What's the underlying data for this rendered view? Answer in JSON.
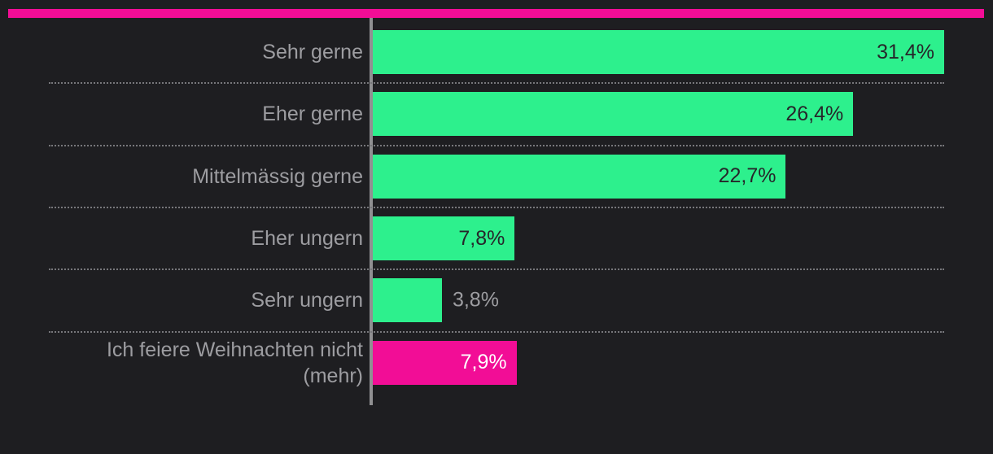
{
  "colors": {
    "background": "#1e1e21",
    "accent_pink": "#f20d96",
    "bar_green": "#2df08d",
    "axis_gray": "#909092",
    "separator_gray": "#77777b",
    "label_gray": "#9d9da1",
    "value_dark": "#26262a",
    "value_white": "#ffffff"
  },
  "chart_data": {
    "type": "bar",
    "orientation": "horizontal",
    "title": "",
    "xlabel": "",
    "ylabel": "",
    "xlim": [
      0,
      31.4
    ],
    "legend": "none",
    "grid": "dotted-row-separators",
    "categories": [
      "Sehr gerne",
      "Eher gerne",
      "Mittelmässig gerne",
      "Eher ungern",
      "Sehr ungern",
      "Ich feiere Weihnachten nicht (mehr)"
    ],
    "values": [
      31.4,
      26.4,
      22.7,
      7.8,
      3.8,
      7.9
    ],
    "value_labels": [
      "31,4%",
      "26,4%",
      "22,7%",
      "7,8%",
      "3,8%",
      "7,9%"
    ],
    "bar_colors": [
      "green",
      "green",
      "green",
      "green",
      "green",
      "pink"
    ],
    "value_label_placement": [
      "inside",
      "inside",
      "inside",
      "inside",
      "outside",
      "inside"
    ]
  }
}
